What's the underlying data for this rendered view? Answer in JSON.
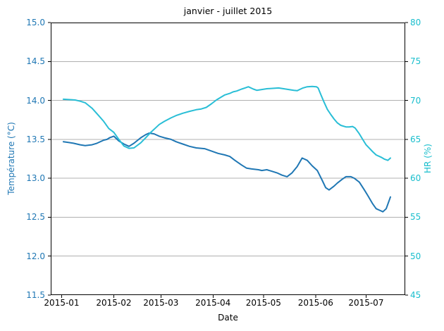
{
  "chart_data": {
    "type": "line",
    "title": "janvier - juillet 2015",
    "xlabel": "Date",
    "grid": {
      "show": true,
      "color": "#b0b0b0"
    },
    "spine_color": "#000000",
    "x_axis": {
      "tick_labels": [
        "2015-01",
        "2015-02",
        "2015-03",
        "2015-04",
        "2015-05",
        "2015-06",
        "2015-07"
      ],
      "tick_days_from_jan1": [
        0,
        31,
        59,
        90,
        120,
        151,
        181
      ],
      "lim_days": [
        -6.5,
        204.3
      ]
    },
    "left_axis": {
      "label": "Température (°C)",
      "color": "#1f77b4",
      "lim": [
        11.5,
        15.0
      ],
      "tick_values": [
        11.5,
        12.0,
        12.5,
        13.0,
        13.5,
        14.0,
        14.5,
        15.0
      ],
      "tick_labels": [
        "11.5",
        "12.0",
        "12.5",
        "13.0",
        "13.5",
        "14.0",
        "14.5",
        "15.0"
      ]
    },
    "right_axis": {
      "label": "HR (%)",
      "color": "#19becd",
      "lim": [
        45,
        80
      ],
      "tick_values": [
        45,
        50,
        55,
        60,
        65,
        70,
        75,
        80
      ],
      "tick_labels": [
        "45",
        "50",
        "55",
        "60",
        "65",
        "70",
        "75",
        "80"
      ]
    },
    "series": [
      {
        "name": "Température",
        "axis": "left",
        "color": "#1f77b4",
        "line_width": 2,
        "points": [
          [
            1,
            13.47
          ],
          [
            4,
            13.46
          ],
          [
            7,
            13.45
          ],
          [
            11,
            13.43
          ],
          [
            14,
            13.42
          ],
          [
            18,
            13.43
          ],
          [
            21,
            13.45
          ],
          [
            25,
            13.49
          ],
          [
            27,
            13.5
          ],
          [
            28.5,
            13.52
          ],
          [
            31,
            13.54
          ],
          [
            34,
            13.48
          ],
          [
            37,
            13.44
          ],
          [
            40,
            13.41
          ],
          [
            43,
            13.45
          ],
          [
            47,
            13.52
          ],
          [
            50,
            13.56
          ],
          [
            52,
            13.58
          ],
          [
            55,
            13.57
          ],
          [
            58,
            13.54
          ],
          [
            61,
            13.52
          ],
          [
            65,
            13.5
          ],
          [
            68,
            13.47
          ],
          [
            72,
            13.44
          ],
          [
            76,
            13.41
          ],
          [
            80,
            13.39
          ],
          [
            85,
            13.38
          ],
          [
            89,
            13.35
          ],
          [
            93,
            13.32
          ],
          [
            97,
            13.3
          ],
          [
            100,
            13.28
          ],
          [
            103,
            13.23
          ],
          [
            107,
            13.17
          ],
          [
            110,
            13.13
          ],
          [
            113,
            13.12
          ],
          [
            117,
            13.11
          ],
          [
            119,
            13.1
          ],
          [
            122,
            13.11
          ],
          [
            125,
            13.09
          ],
          [
            128,
            13.07
          ],
          [
            131,
            13.04
          ],
          [
            134,
            13.02
          ],
          [
            137,
            13.07
          ],
          [
            140,
            13.15
          ],
          [
            143,
            13.26
          ],
          [
            146,
            13.23
          ],
          [
            149,
            13.16
          ],
          [
            152,
            13.1
          ],
          [
            155,
            12.97
          ],
          [
            157,
            12.88
          ],
          [
            159,
            12.85
          ],
          [
            162,
            12.9
          ],
          [
            164,
            12.94
          ],
          [
            167,
            12.99
          ],
          [
            169,
            13.02
          ],
          [
            172,
            13.02
          ],
          [
            174,
            13.0
          ],
          [
            177,
            12.95
          ],
          [
            180,
            12.85
          ],
          [
            182,
            12.78
          ],
          [
            185,
            12.67
          ],
          [
            187,
            12.61
          ],
          [
            189,
            12.59
          ],
          [
            191,
            12.57
          ],
          [
            193,
            12.61
          ],
          [
            195.5,
            12.76
          ]
        ]
      },
      {
        "name": "HR",
        "axis": "right",
        "color": "#29bed6",
        "line_width": 2,
        "points": [
          [
            1,
            70.15
          ],
          [
            5,
            70.1
          ],
          [
            8,
            70.05
          ],
          [
            11,
            69.9
          ],
          [
            14,
            69.7
          ],
          [
            18,
            69.0
          ],
          [
            21,
            68.3
          ],
          [
            25,
            67.3
          ],
          [
            28,
            66.4
          ],
          [
            31,
            65.9
          ],
          [
            34,
            65.0
          ],
          [
            37,
            64.15
          ],
          [
            40,
            63.85
          ],
          [
            43,
            63.9
          ],
          [
            47,
            64.55
          ],
          [
            50,
            65.2
          ],
          [
            53,
            65.9
          ],
          [
            56,
            66.5
          ],
          [
            58,
            66.9
          ],
          [
            61,
            67.3
          ],
          [
            65,
            67.75
          ],
          [
            68,
            68.05
          ],
          [
            72,
            68.35
          ],
          [
            76,
            68.6
          ],
          [
            80,
            68.8
          ],
          [
            83,
            68.9
          ],
          [
            86,
            69.1
          ],
          [
            89,
            69.55
          ],
          [
            92,
            70.05
          ],
          [
            95,
            70.45
          ],
          [
            97,
            70.7
          ],
          [
            100,
            70.9
          ],
          [
            102,
            71.1
          ],
          [
            104,
            71.2
          ],
          [
            107,
            71.45
          ],
          [
            109,
            71.6
          ],
          [
            111,
            71.75
          ],
          [
            114,
            71.45
          ],
          [
            116,
            71.3
          ],
          [
            119,
            71.4
          ],
          [
            122,
            71.5
          ],
          [
            126,
            71.55
          ],
          [
            129,
            71.6
          ],
          [
            132,
            71.5
          ],
          [
            135,
            71.4
          ],
          [
            138,
            71.3
          ],
          [
            140,
            71.25
          ],
          [
            141.5,
            71.4
          ],
          [
            143.5,
            71.6
          ],
          [
            146,
            71.75
          ],
          [
            149,
            71.8
          ],
          [
            151.5,
            71.75
          ],
          [
            152.5,
            71.6
          ],
          [
            154,
            70.8
          ],
          [
            156,
            69.8
          ],
          [
            158,
            68.85
          ],
          [
            160,
            68.2
          ],
          [
            162,
            67.6
          ],
          [
            164,
            67.1
          ],
          [
            166,
            66.8
          ],
          [
            169,
            66.6
          ],
          [
            171,
            66.6
          ],
          [
            173,
            66.65
          ],
          [
            174.5,
            66.45
          ],
          [
            177,
            65.7
          ],
          [
            179,
            65.0
          ],
          [
            181,
            64.3
          ],
          [
            183,
            63.85
          ],
          [
            185,
            63.4
          ],
          [
            187,
            63.0
          ],
          [
            190,
            62.7
          ],
          [
            192,
            62.45
          ],
          [
            194,
            62.3
          ],
          [
            195.5,
            62.6
          ]
        ]
      }
    ]
  }
}
